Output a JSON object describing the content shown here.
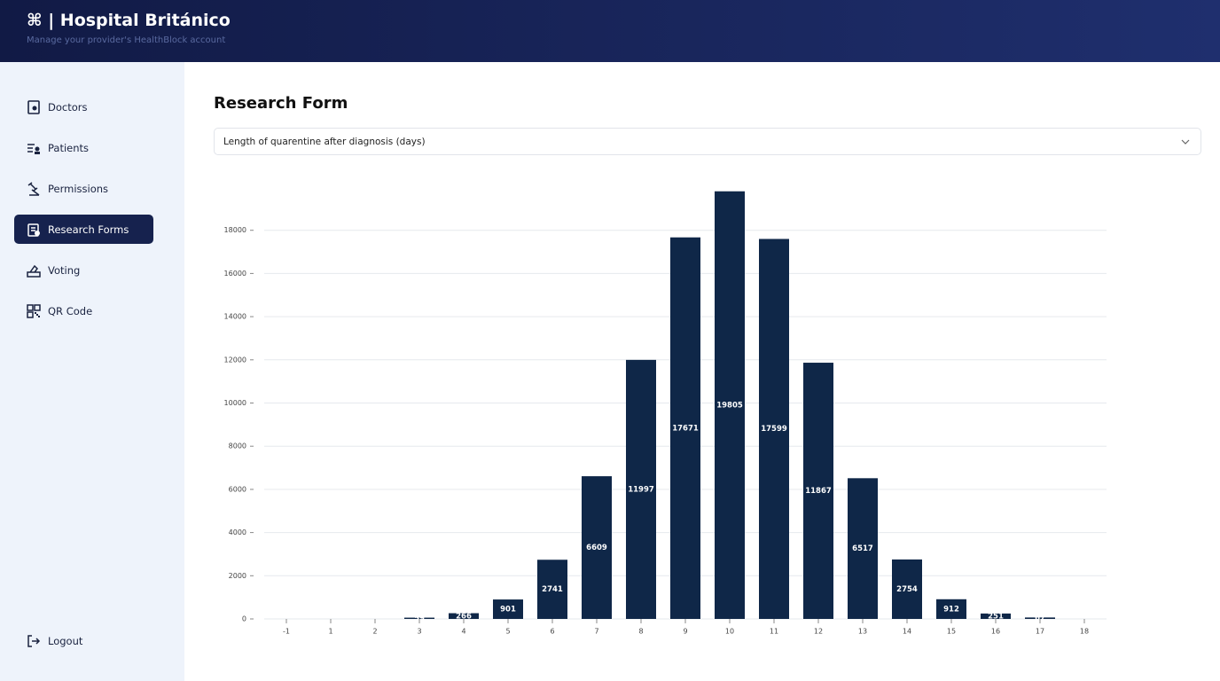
{
  "header": {
    "title": "⌘ | Hospital Británico",
    "subtitle": "Manage your provider's HealthBlock account"
  },
  "sidebar": {
    "items": [
      "Doctors",
      "Patients",
      "Permissions",
      "Research Forms",
      "Voting",
      "QR Code"
    ],
    "logout": "Logout"
  },
  "page": {
    "title": "Research Form",
    "select": "Length of quarentine after diagnosis (days)"
  },
  "chart_data": {
    "type": "bar",
    "categories": [
      "-1",
      "1",
      "2",
      "3",
      "4",
      "5",
      "6",
      "7",
      "8",
      "9",
      "10",
      "11",
      "12",
      "13",
      "14",
      "15",
      "16",
      "17",
      "18"
    ],
    "values": [
      0,
      0,
      0,
      59,
      266,
      901,
      2741,
      6609,
      11997,
      17671,
      19805,
      17599,
      11867,
      6517,
      2754,
      912,
      251,
      67,
      0
    ],
    "color": "#0f2748",
    "ylim": [
      0,
      20000
    ],
    "yticks": [
      0,
      2000,
      4000,
      6000,
      8000,
      10000,
      12000,
      14000,
      16000,
      18000
    ],
    "grid": true
  }
}
